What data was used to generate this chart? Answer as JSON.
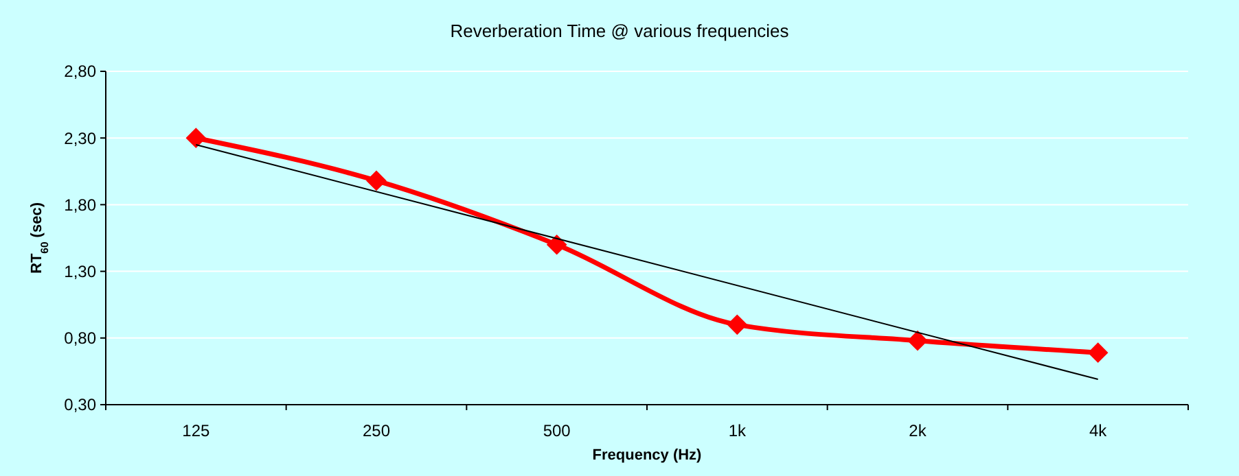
{
  "chart_data": {
    "type": "line",
    "title": "Reverberation Time @ various frequencies",
    "xlabel": "Frequency (Hz)",
    "ylabel": "RT$_{60}$ (sec)",
    "categories": [
      "125",
      "250",
      "500",
      "1k",
      "2k",
      "4k"
    ],
    "series": [
      {
        "color": "#ff0000",
        "values": [
          2.3,
          1.98,
          1.5,
          0.9,
          0.78,
          0.69
        ],
        "marker": "diamond"
      },
      {
        "type": "line",
        "color": "#000000",
        "x": [
          "125",
          "4k"
        ],
        "values": [
          2.25,
          0.49
        ],
        "marker": "none"
      }
    ],
    "ylim": [
      0.3,
      2.8
    ],
    "yticks": [
      {
        "value": 0.3,
        "label": "0,30"
      },
      {
        "value": 0.8,
        "label": "0,80"
      },
      {
        "value": 1.3,
        "label": "1,30"
      },
      {
        "value": 1.8,
        "label": "1,80"
      },
      {
        "value": 2.3,
        "label": "2,30"
      },
      {
        "value": 2.8,
        "label": "2,80"
      }
    ],
    "grid": "y"
  }
}
